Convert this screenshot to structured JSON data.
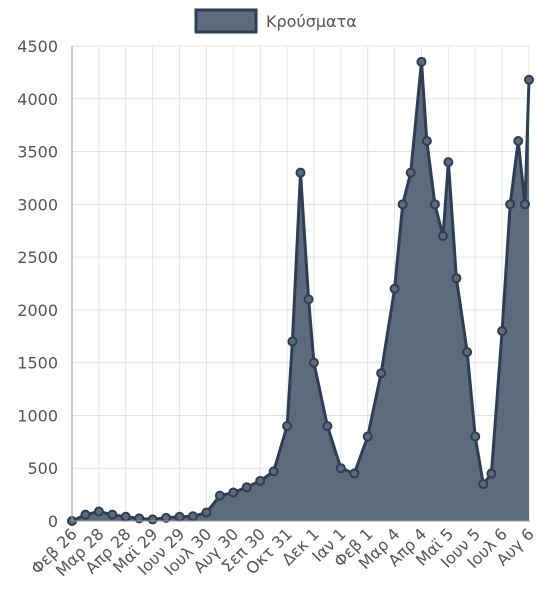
{
  "chart_data": {
    "type": "area",
    "title": "",
    "xlabel": "",
    "ylabel": "",
    "ylim": [
      0,
      4500
    ],
    "yticks": [
      0,
      500,
      1000,
      1500,
      2000,
      2500,
      3000,
      3500,
      4000,
      4500
    ],
    "grid": true,
    "legend_position": "top-center",
    "line_color": "#2e3e55",
    "fill_color": "#5e6b7c",
    "x_tick_labels": [
      "Φεβ 26",
      "Μαρ 28",
      "Απρ 28",
      "Μαϊ 29",
      "Ιουν 29",
      "Ιουλ 30",
      "Αυγ 30",
      "Σεπ 30",
      "Οκτ 31",
      "Δεκ 1",
      "Ιαν 1",
      "Φεβ 1",
      "Μαρ 4",
      "Απρ 4",
      "Μαϊ 5",
      "Ιουν 5",
      "Ιουλ 6",
      "Αυγ 6"
    ],
    "series": [
      {
        "name": "Κρούσματα",
        "x_tick_index": [
          0,
          0.5,
          1,
          1.5,
          2,
          2.5,
          3,
          3.5,
          4,
          4.5,
          5,
          5.5,
          6,
          6.5,
          7,
          7.5,
          8,
          8.2,
          8.5,
          8.8,
          9,
          9.5,
          10,
          10.5,
          11,
          11.5,
          12,
          12.3,
          12.6,
          13,
          13.2,
          13.5,
          13.8,
          14,
          14.3,
          14.7,
          15,
          15.3,
          15.6,
          16,
          16.3,
          16.6,
          16.85,
          17
        ],
        "values": [
          0,
          60,
          90,
          60,
          40,
          25,
          15,
          30,
          40,
          45,
          80,
          240,
          270,
          320,
          380,
          470,
          900,
          1700,
          3300,
          2100,
          1500,
          900,
          500,
          450,
          800,
          1400,
          2200,
          3000,
          3300,
          4350,
          3600,
          3000,
          2700,
          3400,
          2300,
          1600,
          800,
          350,
          450,
          1800,
          3000,
          3600,
          3000,
          4180
        ]
      }
    ]
  }
}
